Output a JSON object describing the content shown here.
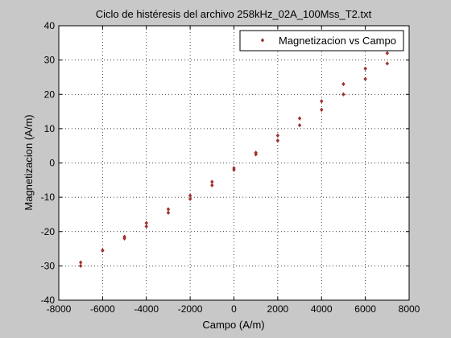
{
  "figure": {
    "background": "#c8c8c8",
    "axes_background": "#ffffff",
    "marker_color": "#a0302f"
  },
  "chart_data": {
    "type": "scatter",
    "title": "Ciclo de histéresis del archivo 258kHz_02A_100Mss_T2.txt",
    "xlabel": "Campo (A/m)",
    "ylabel": "Magnetizacion (A/m)",
    "xlim": [
      -8000,
      8000
    ],
    "ylim": [
      -40,
      40
    ],
    "xticks": [
      -8000,
      -6000,
      -4000,
      -2000,
      0,
      2000,
      4000,
      6000,
      8000
    ],
    "yticks": [
      -40,
      -30,
      -20,
      -10,
      0,
      10,
      20,
      30,
      40
    ],
    "grid": true,
    "legend": {
      "position": "top-right",
      "entries": [
        "Magnetizacion vs Campo"
      ]
    },
    "series": [
      {
        "name": "Magnetizacion vs Campo",
        "branches": [
          {
            "label": "upper",
            "x": [
              -7000,
              -6000,
              -5000,
              -4000,
              -3000,
              -2000,
              -1000,
              0,
              1000,
              2000,
              3000,
              4000,
              5000,
              6000,
              7000
            ],
            "y": [
              -29,
              -25.5,
              -22,
              -18.5,
              -14.5,
              -10.5,
              -6.5,
              -2,
              3,
              8,
              13,
              18,
              23,
              27.5,
              32
            ]
          },
          {
            "label": "lower",
            "x": [
              7000,
              6000,
              5000,
              4000,
              3000,
              2000,
              1000,
              0,
              -1000,
              -2000,
              -3000,
              -4000,
              -5000,
              -6000,
              -7000
            ],
            "y": [
              29,
              24.5,
              20,
              15.5,
              11,
              6.5,
              2.5,
              -1.5,
              -5.5,
              -9.5,
              -13.5,
              -17.5,
              -21.5,
              -25.5,
              -30
            ]
          }
        ]
      }
    ]
  }
}
